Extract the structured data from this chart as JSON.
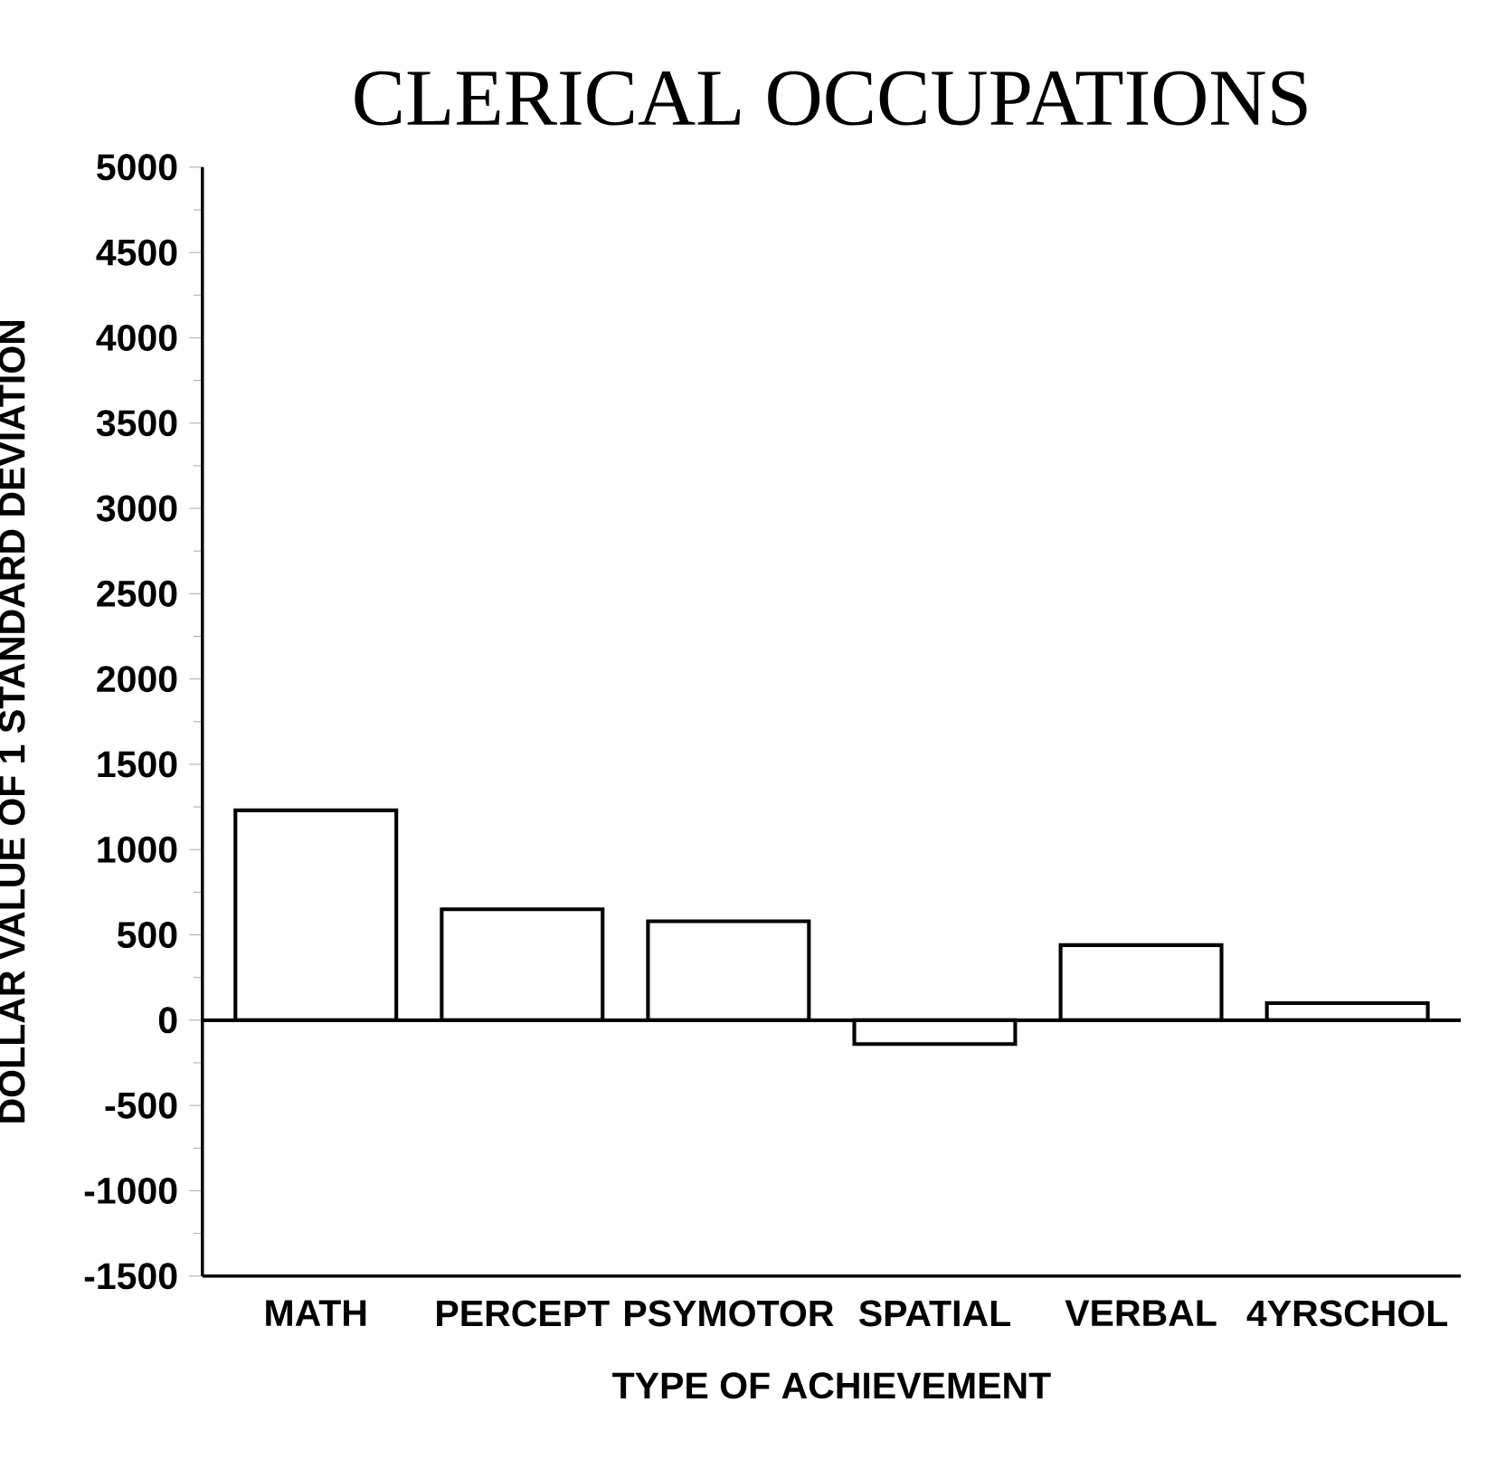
{
  "chart_data": {
    "type": "bar",
    "title": "CLERICAL OCCUPATIONS",
    "xlabel": "TYPE OF ACHIEVEMENT",
    "ylabel": "DOLLAR VALUE OF 1 STANDARD DEVIATION",
    "categories": [
      "MATH",
      "PERCEPT",
      "PSYMOTOR",
      "SPATIAL",
      "VERBAL",
      "4YRSCHOL"
    ],
    "values": [
      1230,
      650,
      580,
      -140,
      440,
      100
    ],
    "color": "#ffffff",
    "ylim": [
      -1500,
      5000
    ],
    "yticks": [
      -1500,
      -1000,
      -500,
      0,
      500,
      1000,
      1500,
      2000,
      2500,
      3000,
      3500,
      4000,
      4500,
      5000
    ],
    "ref_lines": [
      {
        "axis": "y",
        "value": 0
      }
    ]
  }
}
